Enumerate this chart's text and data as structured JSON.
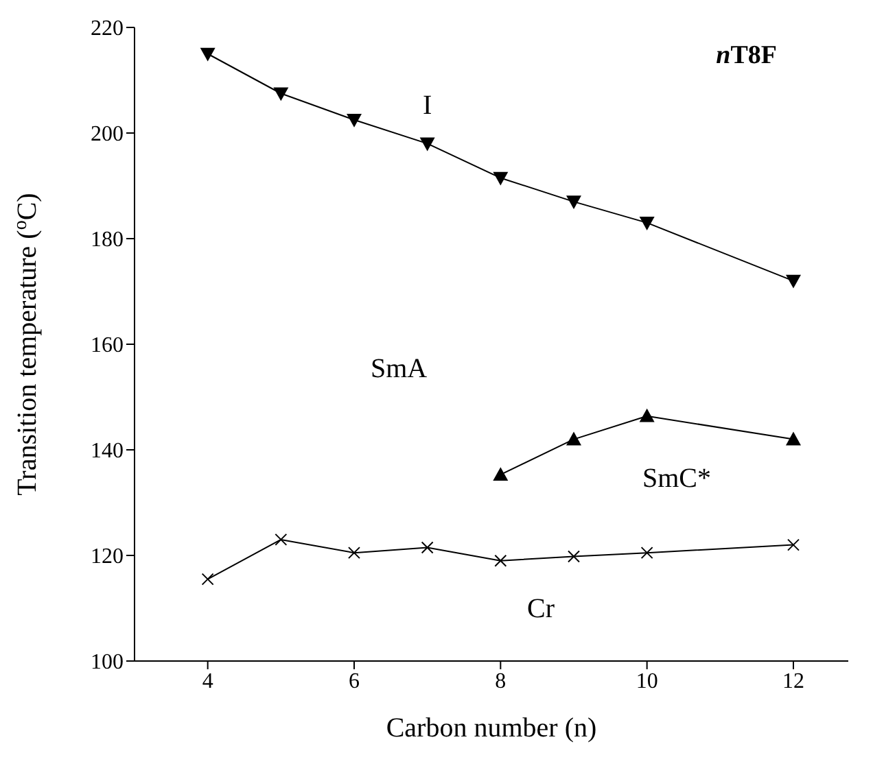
{
  "chart_data": {
    "type": "line",
    "title": "nT8F",
    "xlabel": "Carbon number (n)",
    "ylabel": "Transition temperature ($^{o}$C)",
    "xlim": [
      3,
      12.75
    ],
    "xticks": [
      4,
      6,
      8,
      10,
      12
    ],
    "ylim": [
      100,
      220
    ],
    "yticks": [
      100,
      120,
      140,
      160,
      180,
      200,
      220
    ],
    "grid": false,
    "legend": false,
    "line_style": "solid",
    "series": [
      {
        "color": "#000000",
        "marker": "triangle-down",
        "x": [
          4,
          5,
          6,
          7,
          8,
          9,
          10,
          12
        ],
        "values": [
          215,
          207.5,
          202.5,
          198,
          191.5,
          187,
          183,
          172
        ]
      },
      {
        "color": "#000000",
        "marker": "triangle",
        "x": [
          8,
          9,
          10,
          12
        ],
        "values": [
          135.3,
          142,
          146.4,
          142
        ]
      },
      {
        "color": "#000000",
        "marker": "cross",
        "x": [
          4,
          5,
          6,
          7,
          8,
          9,
          10,
          12
        ],
        "values": [
          115.5,
          123,
          120.5,
          121.5,
          119,
          119.8,
          120.5,
          122
        ]
      }
    ],
    "annotations": [
      "I",
      "SmA",
      "SmC*",
      "Cr"
    ]
  }
}
